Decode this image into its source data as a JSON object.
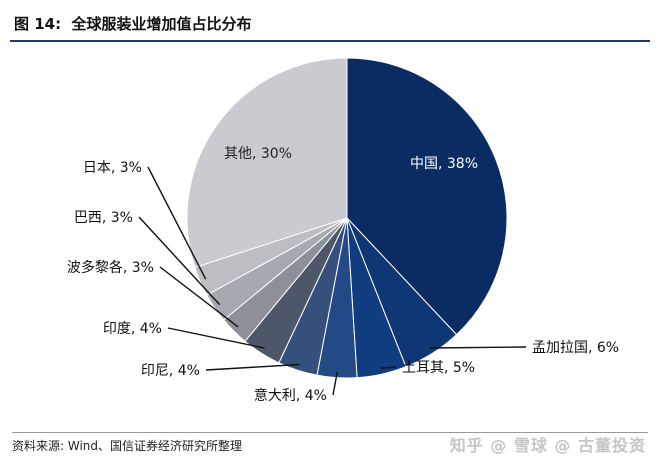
{
  "header": {
    "title": "图 14:  全球服装业增加值占比分布"
  },
  "footer": {
    "source": "资料来源: Wind、国信证券经济研究所整理"
  },
  "watermark": "知乎 @ 雪球 @ 古董投资",
  "chart_data": {
    "type": "pie",
    "title": "全球服装业增加值占比分布",
    "unit": "%",
    "slices": [
      {
        "label": "中国",
        "value": 38,
        "display": "中国, 38%",
        "color": "#0b2c63",
        "label_mode": "inside"
      },
      {
        "label": "孟加拉国",
        "value": 6,
        "display": "孟加拉国, 6%",
        "color": "#0e3774",
        "label_mode": "outside"
      },
      {
        "label": "土耳其",
        "value": 5,
        "display": "土耳其, 5%",
        "color": "#0f3d80",
        "label_mode": "outside"
      },
      {
        "label": "意大利",
        "value": 4,
        "display": "意大利, 4%",
        "color": "#234a86",
        "label_mode": "outside"
      },
      {
        "label": "印尼",
        "value": 4,
        "display": "印尼, 4%",
        "color": "#36507e",
        "label_mode": "outside"
      },
      {
        "label": "印度",
        "value": 4,
        "display": "印度, 4%",
        "color": "#4e566a",
        "label_mode": "outside"
      },
      {
        "label": "波多黎各",
        "value": 3,
        "display": "波多黎各, 3%",
        "color": "#8d9099",
        "label_mode": "outside"
      },
      {
        "label": "巴西",
        "value": 3,
        "display": "巴西, 3%",
        "color": "#a7a9b0",
        "label_mode": "outside"
      },
      {
        "label": "日本",
        "value": 3,
        "display": "日本, 3%",
        "color": "#bcbec4",
        "label_mode": "outside"
      },
      {
        "label": "其他",
        "value": 30,
        "display": "其他, 30%",
        "color": "#c9cbd1",
        "label_mode": "inside"
      }
    ]
  }
}
